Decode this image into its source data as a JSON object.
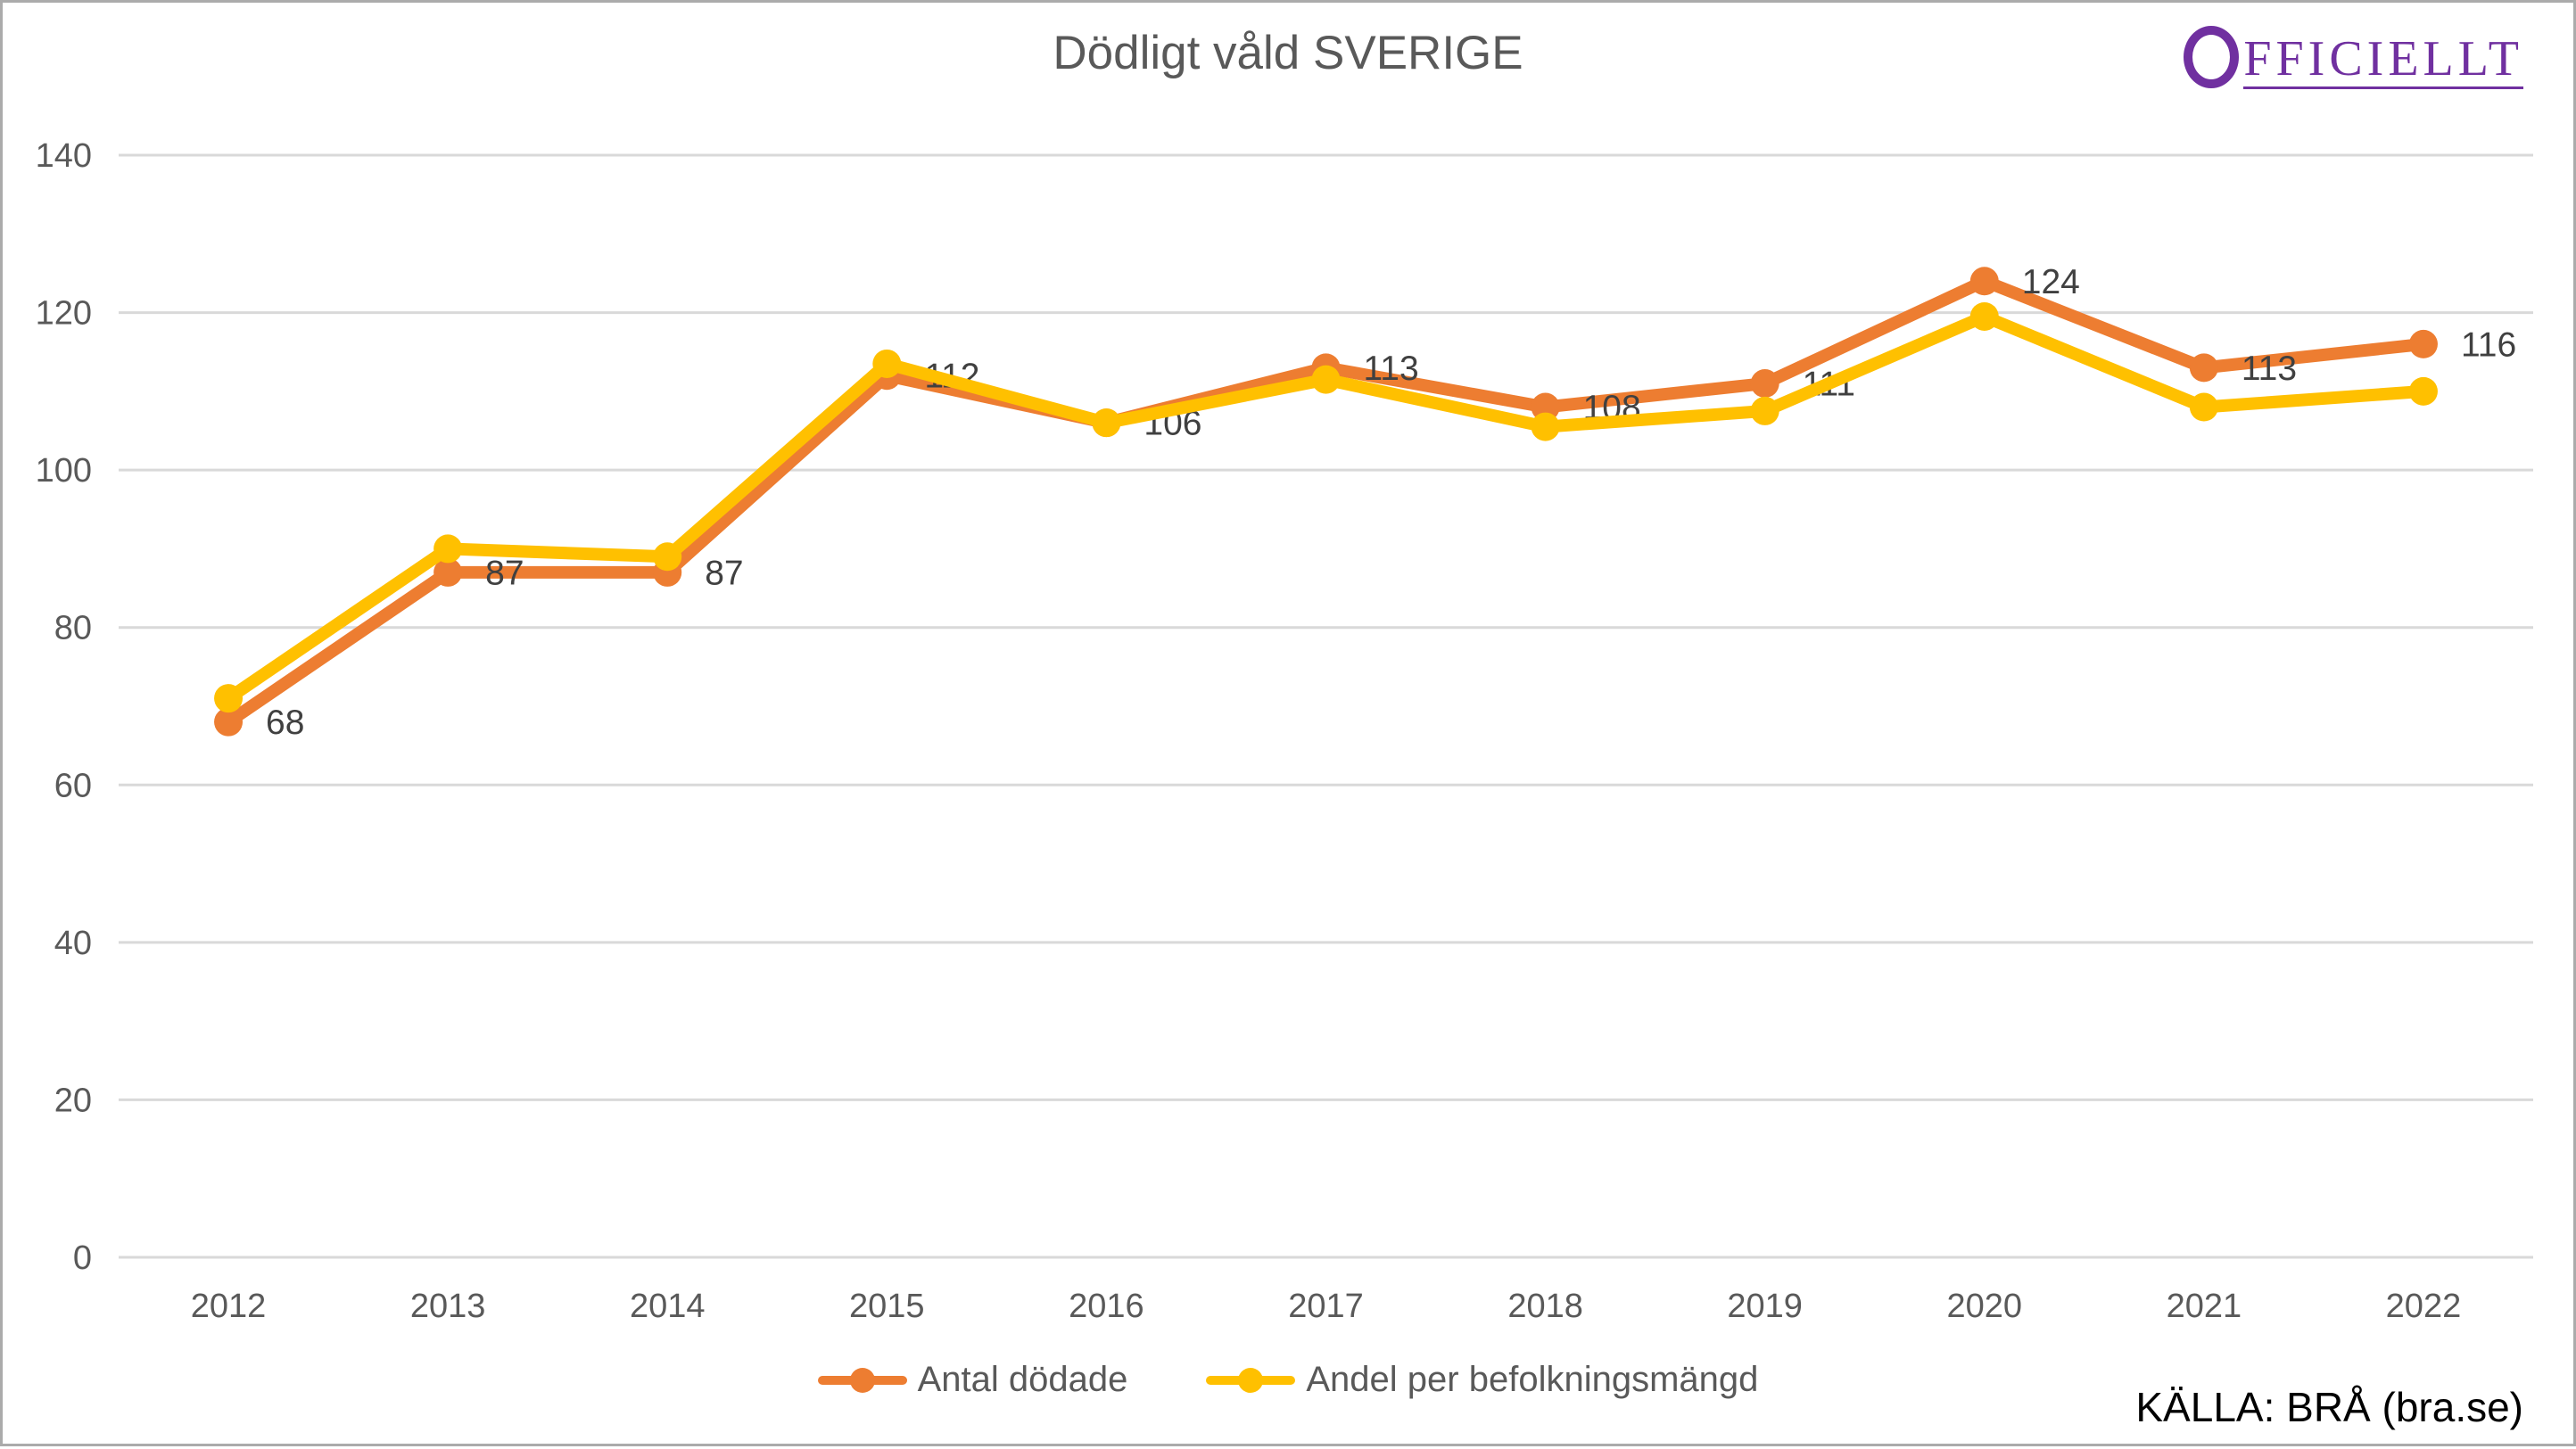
{
  "page": {
    "title": "Dödligt våld SVERIGE",
    "source": "KÄLLA: BRÅ (bra.se)",
    "logo_text": "FFICIELLT",
    "logo_color": "#7030A0"
  },
  "chart_data": {
    "type": "line",
    "title": "Dödligt våld SVERIGE",
    "categories": [
      "2012",
      "2013",
      "2014",
      "2015",
      "2016",
      "2017",
      "2018",
      "2019",
      "2020",
      "2021",
      "2022"
    ],
    "series": [
      {
        "name": "Antal dödade",
        "color": "#ED7D31",
        "values": [
          68,
          87,
          87,
          112,
          106,
          113,
          108,
          111,
          124,
          113,
          116
        ],
        "data_labels": [
          68,
          87,
          87,
          112,
          106,
          113,
          108,
          111,
          124,
          113,
          116
        ]
      },
      {
        "name": "Andel per befolkningsmängd",
        "color": "#FFC000",
        "values": [
          71,
          90,
          89,
          113.5,
          106,
          111.5,
          105.5,
          107.5,
          119.5,
          108,
          110
        ]
      }
    ],
    "xlabel": "",
    "ylabel": "",
    "ylim": [
      0,
      140
    ],
    "yticks": [
      0,
      20,
      40,
      60,
      80,
      100,
      120,
      140
    ],
    "grid": true,
    "legend_position": "bottom",
    "style": {
      "grid_color": "#D9D9D9",
      "axis_label_color": "#595959",
      "data_label_color": "#404040",
      "line_width": 14,
      "marker_radius": 16
    }
  }
}
